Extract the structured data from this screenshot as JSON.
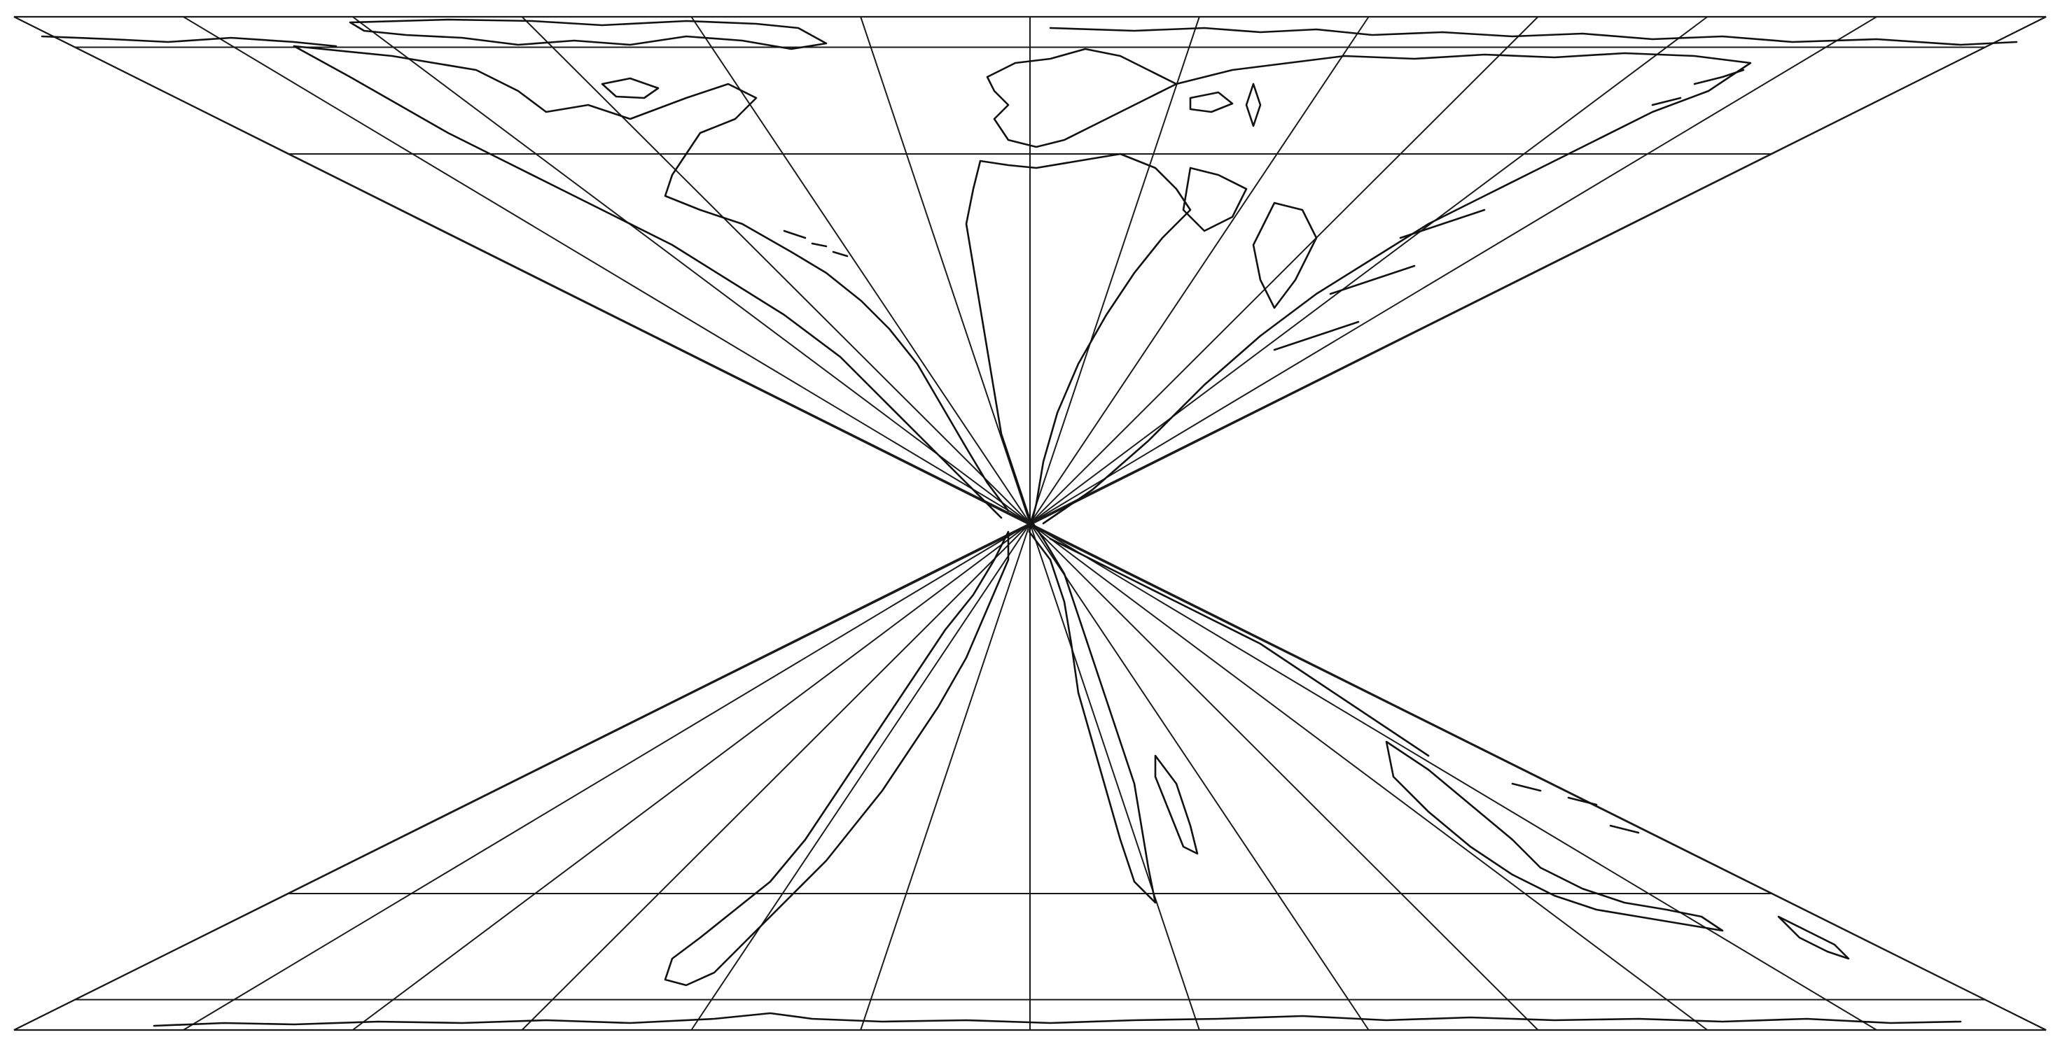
{
  "map": {
    "title": "",
    "projection": "",
    "colors": {
      "background": "#ffffff",
      "graticule": "#1a1a1a",
      "coastline": "#111111"
    },
    "graticule": {
      "meridian_count": 13,
      "parallel_count": 4
    },
    "coastline_features": [
      "north-america-coast",
      "south-america-coast",
      "europe-coast",
      "africa-coast",
      "asia-coast",
      "australia-coast",
      "greenland-coast",
      "antarctica-coast"
    ]
  }
}
